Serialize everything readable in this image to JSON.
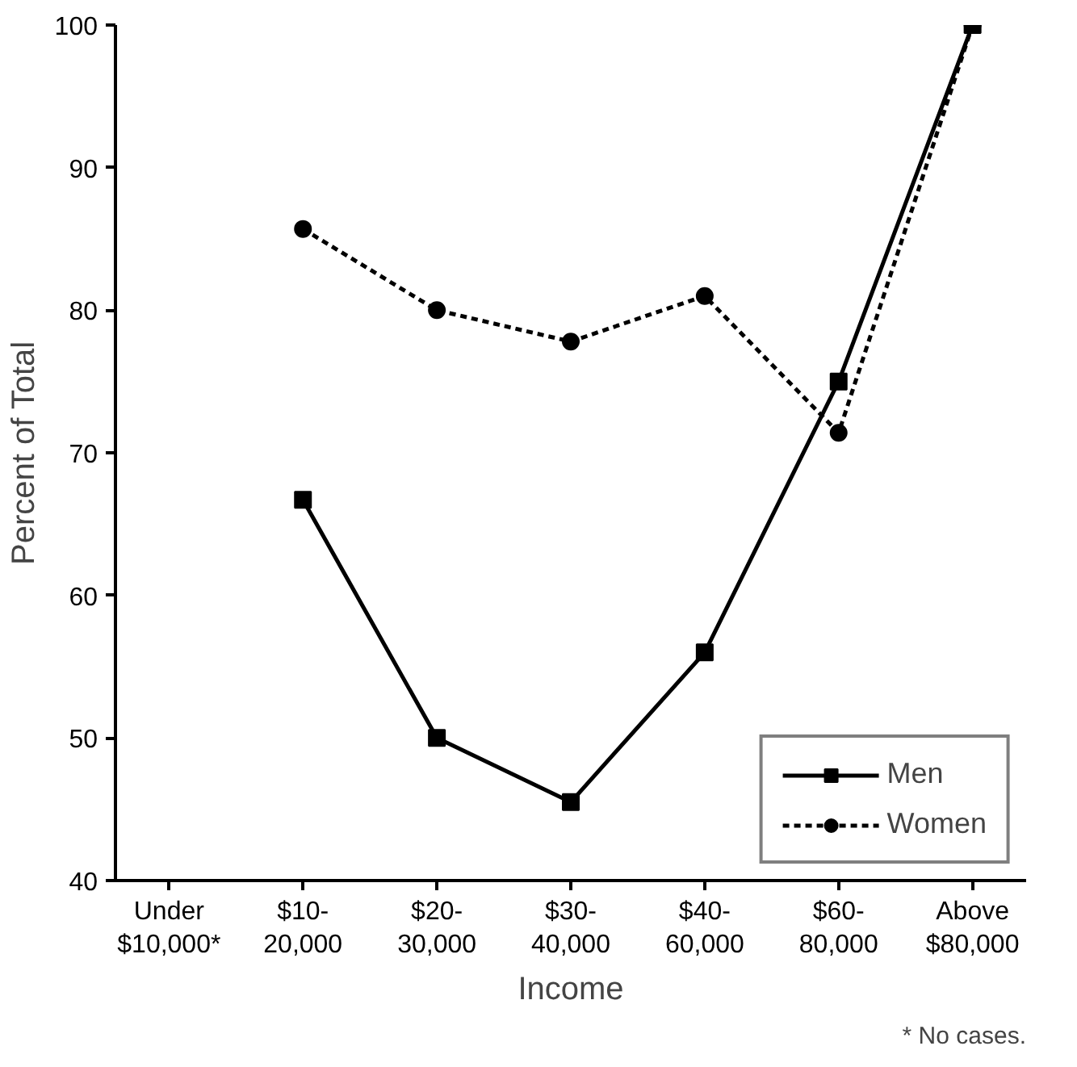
{
  "chart_data": {
    "type": "line",
    "xlabel": "Income",
    "ylabel": "Percent of Total",
    "categories": [
      "Under\n$10,000*",
      "$10-\n20,000",
      "$20-\n30,000",
      "$30-\n40,000",
      "$40-\n60,000",
      "$60-\n80,000",
      "Above\n$80,000"
    ],
    "series": [
      {
        "name": "Men",
        "color": "#000000",
        "marker": "square",
        "line_style": "solid",
        "values": [
          null,
          66.7,
          50,
          45.5,
          56,
          75,
          100
        ]
      },
      {
        "name": "Women",
        "color": "#000000",
        "marker": "circle",
        "line_style": "dashed",
        "values": [
          null,
          85.7,
          80,
          77.8,
          81,
          71.4,
          100
        ]
      }
    ],
    "ylim": [
      40,
      100
    ],
    "yticks": [
      40,
      50,
      60,
      70,
      80,
      90,
      100
    ],
    "grid": false,
    "legend": "bottom right",
    "annotations": [
      "* No cases."
    ]
  }
}
